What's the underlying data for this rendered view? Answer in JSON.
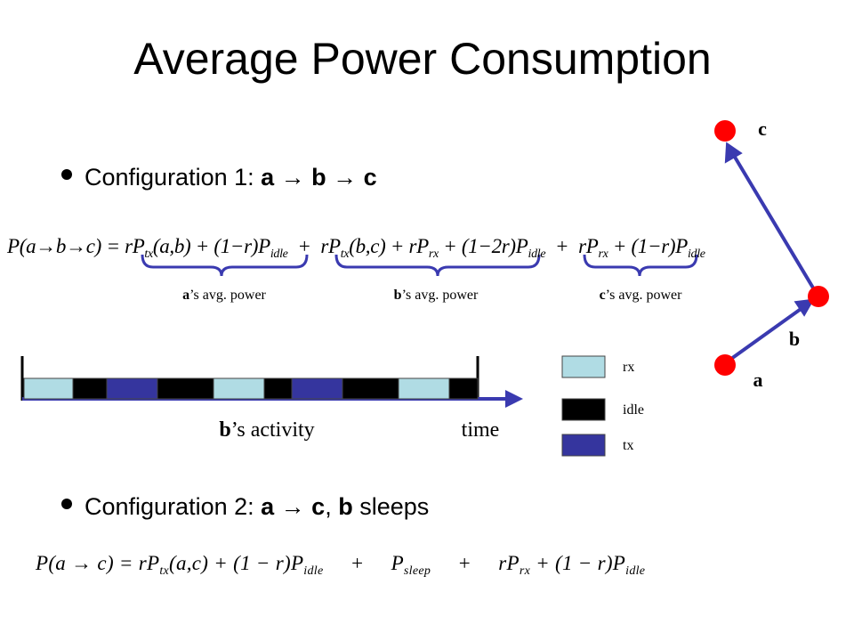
{
  "title": "Average Power Consumption",
  "bullets": [
    [
      {
        "text": "Configuration 1: ",
        "bold": false
      },
      {
        "text": "a → b → c",
        "bold": true
      }
    ],
    [
      {
        "text": "Configuration 2: ",
        "bold": false
      },
      {
        "text": "a",
        "bold": true
      },
      {
        "text": " → ",
        "bold": false
      },
      {
        "text": "c",
        "bold": true
      },
      {
        "text": ", ",
        "bold": false
      },
      {
        "text": "b",
        "bold": true
      },
      {
        "text": " sleeps",
        "bold": false
      }
    ]
  ],
  "formula1": [
    "P(a→b→c) = rP",
    "tx",
    "(a,b) + (1−r)P",
    "idle",
    "  +  rP",
    "tx",
    "(b,c) + rP",
    "rx",
    " + (1−2r)P",
    "idle",
    "  +  rP",
    "rx",
    " + (1−r)P",
    "idle"
  ],
  "formula2": [
    "P(a → c) = rP",
    "tx",
    "(a,c) + (1 − r)P",
    "idle",
    "     +     P",
    "sleep",
    "     +     rP",
    "rx",
    " + (1 − r)P",
    "idle"
  ],
  "brace_labels": [
    {
      "node": "a",
      "text": "’s avg. power"
    },
    {
      "node": "b",
      "text": "’s avg. power"
    },
    {
      "node": "c",
      "text": "’s avg. power"
    }
  ],
  "activity": {
    "node": "b",
    "label": "’s activity",
    "axis": "time",
    "sequence": [
      "rx",
      "idle",
      "tx",
      "idle",
      "rx",
      "idle",
      "tx",
      "idle",
      "rx",
      "idle"
    ]
  },
  "legend": [
    "rx",
    "idle",
    "tx"
  ],
  "nodes": [
    "a",
    "b",
    "c"
  ]
}
